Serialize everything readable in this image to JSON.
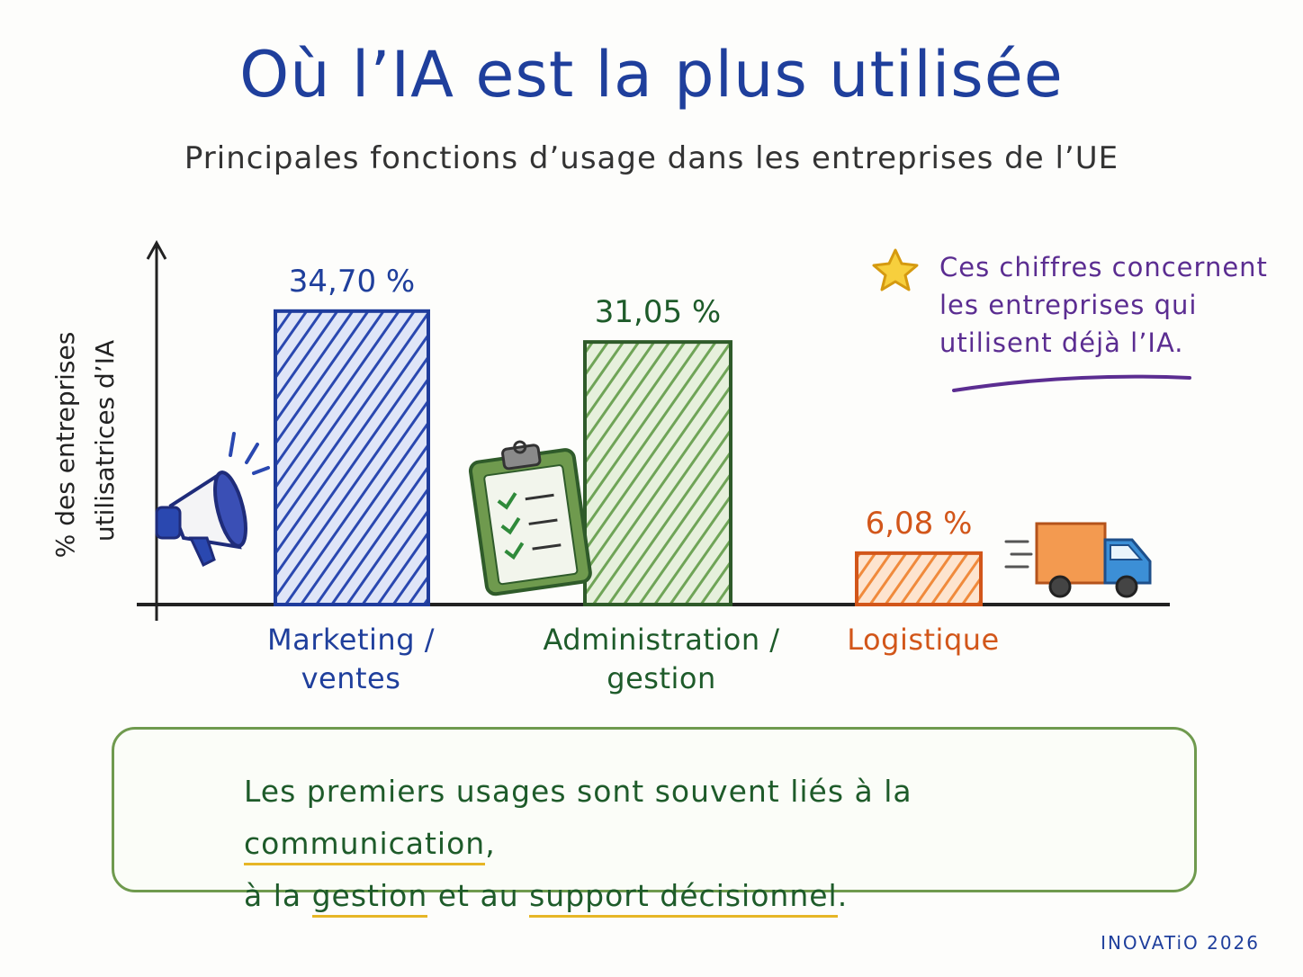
{
  "title": "Où l’IA est la plus utilisée",
  "subtitle": "Principales fonctions d’usage dans les entreprises de l’UE",
  "note": {
    "lines": [
      "Ces chiffres concernent",
      "les entreprises qui",
      "utilisent déjà l’IA."
    ],
    "color": "#5b2d91",
    "icon": "star-icon"
  },
  "callout": {
    "icon": "star-icon",
    "side_icon": "lightbulb-icon",
    "parts": [
      "Les premiers usages sont souvent liés à la ",
      "communication",
      ",",
      "à la ",
      "gestion",
      " et au ",
      "support décisionnel",
      "."
    ]
  },
  "footer": "INOVATiO 2026",
  "chart_data": {
    "type": "bar",
    "title": "Où l’IA est la plus utilisée",
    "subtitle": "Principales fonctions d’usage dans les entreprises de l’UE",
    "ylabel_lines": [
      "% des entreprises",
      "utilisatrices d’IA"
    ],
    "xlabel": "",
    "ylim": [
      0,
      40
    ],
    "grid": false,
    "categories": [
      "Marketing / ventes",
      "Administration / gestion",
      "Logistique"
    ],
    "category_lines": [
      [
        "Marketing /",
        "ventes"
      ],
      [
        "Administration /",
        "gestion"
      ],
      [
        "Logistique"
      ]
    ],
    "values": [
      34.7,
      31.05,
      6.08
    ],
    "data_labels": [
      "34,70 %",
      "31,05 %",
      "6,08 %"
    ],
    "colors": [
      "#2a48b0",
      "#5f9a4a",
      "#f08a3c"
    ],
    "text_colors": [
      "#1f3f9c",
      "#1e5b2a",
      "#d2561a"
    ],
    "icons": [
      "megaphone-icon",
      "clipboard-icon",
      "truck-icon"
    ]
  }
}
